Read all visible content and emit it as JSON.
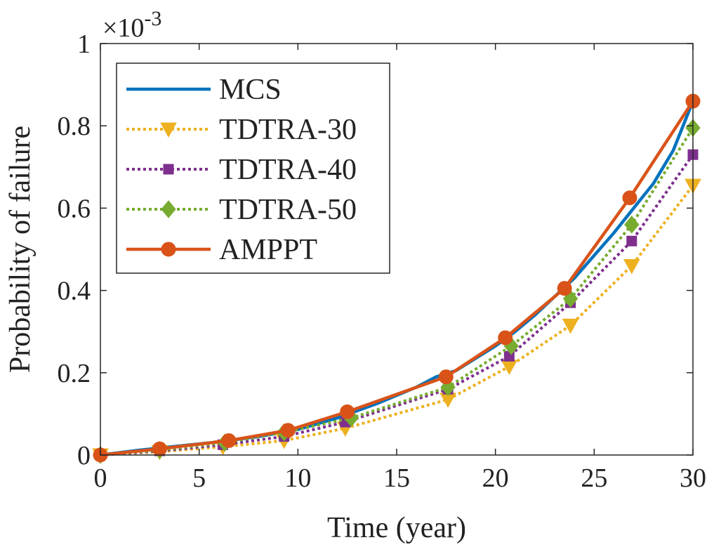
{
  "chart_data": {
    "type": "line",
    "xlabel": "Time (year)",
    "ylabel": "Probability of failure",
    "y_multiplier_base": "×10",
    "y_multiplier_exp": "-3",
    "xlim": [
      0,
      30
    ],
    "ylim": [
      0,
      1
    ],
    "x_ticks": [
      0,
      5,
      10,
      15,
      20,
      25,
      30
    ],
    "x_tick_labels": [
      "0",
      "5",
      "10",
      "15",
      "20",
      "25",
      "30"
    ],
    "y_ticks": [
      0,
      0.2,
      0.4,
      0.6,
      0.8,
      1
    ],
    "y_tick_labels": [
      "0",
      "0.2",
      "0.4",
      "0.6",
      "0.8",
      "1"
    ],
    "grid": false,
    "legend_position": "top-left",
    "series": [
      {
        "name": "MCS",
        "color": "#0072BD",
        "line_style": "solid",
        "marker": "none",
        "x": [
          0,
          2,
          4,
          6,
          8,
          10,
          12,
          14,
          16,
          17,
          18,
          20,
          21,
          22,
          24,
          26,
          27,
          28,
          29,
          30
        ],
        "y": [
          0,
          0.012,
          0.022,
          0.032,
          0.045,
          0.062,
          0.09,
          0.125,
          0.165,
          0.19,
          0.205,
          0.265,
          0.3,
          0.34,
          0.43,
          0.54,
          0.6,
          0.66,
          0.74,
          0.86
        ]
      },
      {
        "name": "TDTRA-30",
        "color": "#EDB120",
        "line_style": "dotted",
        "marker": "triangle-down",
        "x": [
          0,
          3,
          6.2,
          9.3,
          12.4,
          17.6,
          20.7,
          23.8,
          26.9,
          30
        ],
        "y": [
          0,
          0.008,
          0.02,
          0.035,
          0.065,
          0.135,
          0.215,
          0.315,
          0.46,
          0.655
        ]
      },
      {
        "name": "TDTRA-40",
        "color": "#7E2F8E",
        "line_style": "dotted",
        "marker": "square",
        "x": [
          0,
          3,
          6.2,
          9.3,
          12.4,
          17.6,
          20.7,
          23.8,
          26.9,
          30
        ],
        "y": [
          0,
          0.01,
          0.025,
          0.045,
          0.08,
          0.16,
          0.24,
          0.37,
          0.52,
          0.73
        ]
      },
      {
        "name": "TDTRA-50",
        "color": "#77AC30",
        "line_style": "dotted",
        "marker": "diamond",
        "x": [
          0,
          3,
          6.3,
          9.3,
          12.7,
          17.6,
          20.8,
          23.8,
          26.9,
          30
        ],
        "y": [
          0,
          0.012,
          0.03,
          0.055,
          0.09,
          0.165,
          0.265,
          0.38,
          0.56,
          0.795
        ]
      },
      {
        "name": "AMPPT",
        "color": "#D95319",
        "line_style": "solid",
        "marker": "circle",
        "x": [
          0,
          3,
          6.5,
          9.5,
          12.5,
          17.5,
          20.5,
          23.5,
          26.8,
          30
        ],
        "y": [
          0,
          0.015,
          0.035,
          0.06,
          0.105,
          0.19,
          0.285,
          0.405,
          0.625,
          0.86
        ]
      }
    ]
  }
}
